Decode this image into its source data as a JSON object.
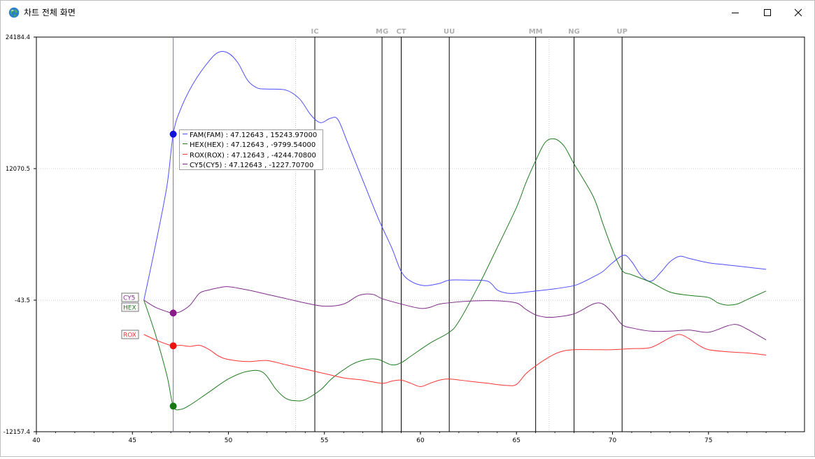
{
  "window": {
    "title": "차트 전체 화면",
    "icon": "globe-icon",
    "controls": [
      "minimize-icon",
      "maximize-icon",
      "close-icon"
    ]
  },
  "chart_data": {
    "type": "line",
    "xlim": [
      40,
      80
    ],
    "ylim": [
      -12157.4,
      24184.4
    ],
    "x_ticks": [
      "40",
      "45",
      "50",
      "55",
      "60",
      "65",
      "70",
      "75"
    ],
    "y_ticks": [
      "24184.4",
      "12070.5",
      "-43.5",
      "-12157.4"
    ],
    "grid": true,
    "cursor_x": 47.12643,
    "series": [
      {
        "name": "FAM",
        "color": "#4d4dff",
        "x": [
          45.6,
          46.2,
          46.8,
          47.12643,
          47.5,
          48.2,
          49.0,
          49.5,
          50.0,
          50.5,
          51.0,
          51.5,
          52.0,
          53.0,
          53.7,
          54.3,
          54.8,
          55.3,
          55.7,
          56.2,
          57.0,
          57.8,
          58.5,
          59.0,
          59.5,
          60.2,
          61.0,
          61.5,
          62.5,
          63.5,
          64.0,
          64.5,
          65.0,
          66.0,
          67.0,
          68.0,
          68.5,
          69.0,
          69.5,
          70.0,
          70.6,
          71.0,
          71.5,
          72.0,
          72.5,
          73.0,
          73.5,
          74.0,
          75.0,
          76.0,
          77.0,
          78.0
        ],
        "y": [
          -43.5,
          5000,
          10500,
          15243.97,
          17500,
          20000,
          22000,
          22800,
          22700,
          21800,
          20200,
          19500,
          19400,
          19300,
          18500,
          17000,
          16300,
          16700,
          16600,
          14500,
          11000,
          7500,
          4800,
          2600,
          1700,
          1300,
          1500,
          1800,
          1800,
          1700,
          900,
          600,
          600,
          800,
          1000,
          1300,
          1650,
          2100,
          2600,
          3400,
          4100,
          3500,
          2200,
          1700,
          2500,
          3500,
          4000,
          3800,
          3400,
          3200,
          3000,
          2800
        ]
      },
      {
        "name": "HEX",
        "color": "#1e7b1e",
        "x": [
          45.6,
          46.2,
          46.8,
          47.12643,
          47.5,
          48.0,
          49.0,
          50.0,
          51.0,
          51.8,
          52.5,
          53.0,
          53.5,
          54.0,
          54.8,
          55.3,
          55.8,
          56.5,
          57.2,
          57.8,
          58.5,
          59.0,
          59.5,
          60.5,
          61.5,
          62.0,
          63.0,
          64.0,
          65.0,
          65.5,
          66.0,
          66.5,
          67.0,
          67.5,
          68.0,
          69.0,
          69.5,
          70.0,
          70.5,
          71.0,
          72.0,
          73.0,
          74.0,
          75.0,
          75.5,
          76.0,
          76.5,
          77.0,
          78.0
        ],
        "y": [
          -43.5,
          -3200,
          -7000,
          -9799.54,
          -10100,
          -9700,
          -8500,
          -7300,
          -6600,
          -6700,
          -8300,
          -9100,
          -9300,
          -9200,
          -8300,
          -7400,
          -6700,
          -5900,
          -5500,
          -5500,
          -6000,
          -5800,
          -5200,
          -4000,
          -3000,
          -2000,
          1200,
          4800,
          8500,
          10800,
          12800,
          14500,
          14800,
          14100,
          12500,
          9500,
          7000,
          4600,
          2700,
          2300,
          1600,
          700,
          400,
          200,
          -300,
          -500,
          -400,
          0,
          800
        ]
      },
      {
        "name": "ROX",
        "color": "#ff3333",
        "x": [
          45.6,
          46.2,
          46.8,
          47.12643,
          47.5,
          48.0,
          48.5,
          49.0,
          49.5,
          50.0,
          51.0,
          52.0,
          53.0,
          54.0,
          55.0,
          56.0,
          57.0,
          58.0,
          58.5,
          59.0,
          59.5,
          60.0,
          60.5,
          61.0,
          61.5,
          62.5,
          63.5,
          64.5,
          65.0,
          65.5,
          66.0,
          66.5,
          67.0,
          67.5,
          68.0,
          69.0,
          70.0,
          71.0,
          72.0,
          73.0,
          73.5,
          74.0,
          74.5,
          75.0,
          76.0,
          77.0,
          78.0
        ],
        "y": [
          -3200,
          -3700,
          -4100,
          -4244.708,
          -4200,
          -4300,
          -4200,
          -4600,
          -5200,
          -5500,
          -5700,
          -5600,
          -6000,
          -6400,
          -6800,
          -7200,
          -7400,
          -7700,
          -7500,
          -7400,
          -7700,
          -8000,
          -7700,
          -7400,
          -7300,
          -7500,
          -7700,
          -7900,
          -7800,
          -6800,
          -6100,
          -5500,
          -5000,
          -4700,
          -4600,
          -4600,
          -4600,
          -4500,
          -4400,
          -3500,
          -3200,
          -3600,
          -4200,
          -4600,
          -4800,
          -4900,
          -5100
        ]
      },
      {
        "name": "CY5",
        "color": "#7e2c88",
        "x": [
          45.6,
          46.2,
          46.8,
          47.12643,
          47.5,
          48.0,
          48.5,
          49.0,
          49.5,
          50.0,
          51.0,
          52.0,
          53.0,
          54.0,
          55.0,
          56.0,
          56.8,
          57.5,
          58.0,
          59.0,
          60.0,
          60.5,
          61.0,
          62.0,
          63.0,
          64.0,
          65.0,
          65.5,
          66.0,
          66.5,
          67.0,
          68.0,
          69.0,
          69.5,
          70.0,
          70.5,
          71.0,
          72.0,
          73.0,
          74.0,
          75.0,
          76.0,
          76.5,
          77.0,
          78.0
        ],
        "y": [
          -43.5,
          -700,
          -1100,
          -1227.707,
          -1100,
          -500,
          600,
          900,
          1100,
          1200,
          900,
          500,
          100,
          -300,
          -600,
          -400,
          400,
          500,
          100,
          -400,
          -800,
          -700,
          -400,
          -200,
          -100,
          -100,
          -300,
          -900,
          -1400,
          -1600,
          -1600,
          -1300,
          -400,
          -400,
          -1200,
          -2300,
          -2600,
          -2900,
          -2900,
          -2800,
          -3000,
          -2400,
          -2300,
          -2700,
          -3700
        ]
      }
    ],
    "series_labels": [
      "CY5",
      "HEX",
      "ROX"
    ],
    "vertical_markers": [
      {
        "label": "IC",
        "x": 54.5
      },
      {
        "label": "MG",
        "x": 58.0
      },
      {
        "label": "CT",
        "x": 59.0
      },
      {
        "label": "UU",
        "x": 61.5
      },
      {
        "label": "MM",
        "x": 66.0
      },
      {
        "label": "NG",
        "x": 68.0
      },
      {
        "label": "UP",
        "x": 70.5
      }
    ],
    "tooltip": [
      {
        "name": "FAM",
        "text": "FAM(FAM) : 47.12643 , 15243.97000"
      },
      {
        "name": "HEX",
        "text": "HEX(HEX) : 47.12643 , -9799.54000"
      },
      {
        "name": "ROX",
        "text": "ROX(ROX) : 47.12643 , -4244.70800"
      },
      {
        "name": "CY5",
        "text": "CY5(CY5) : 47.12643 , -1227.70700"
      }
    ]
  }
}
